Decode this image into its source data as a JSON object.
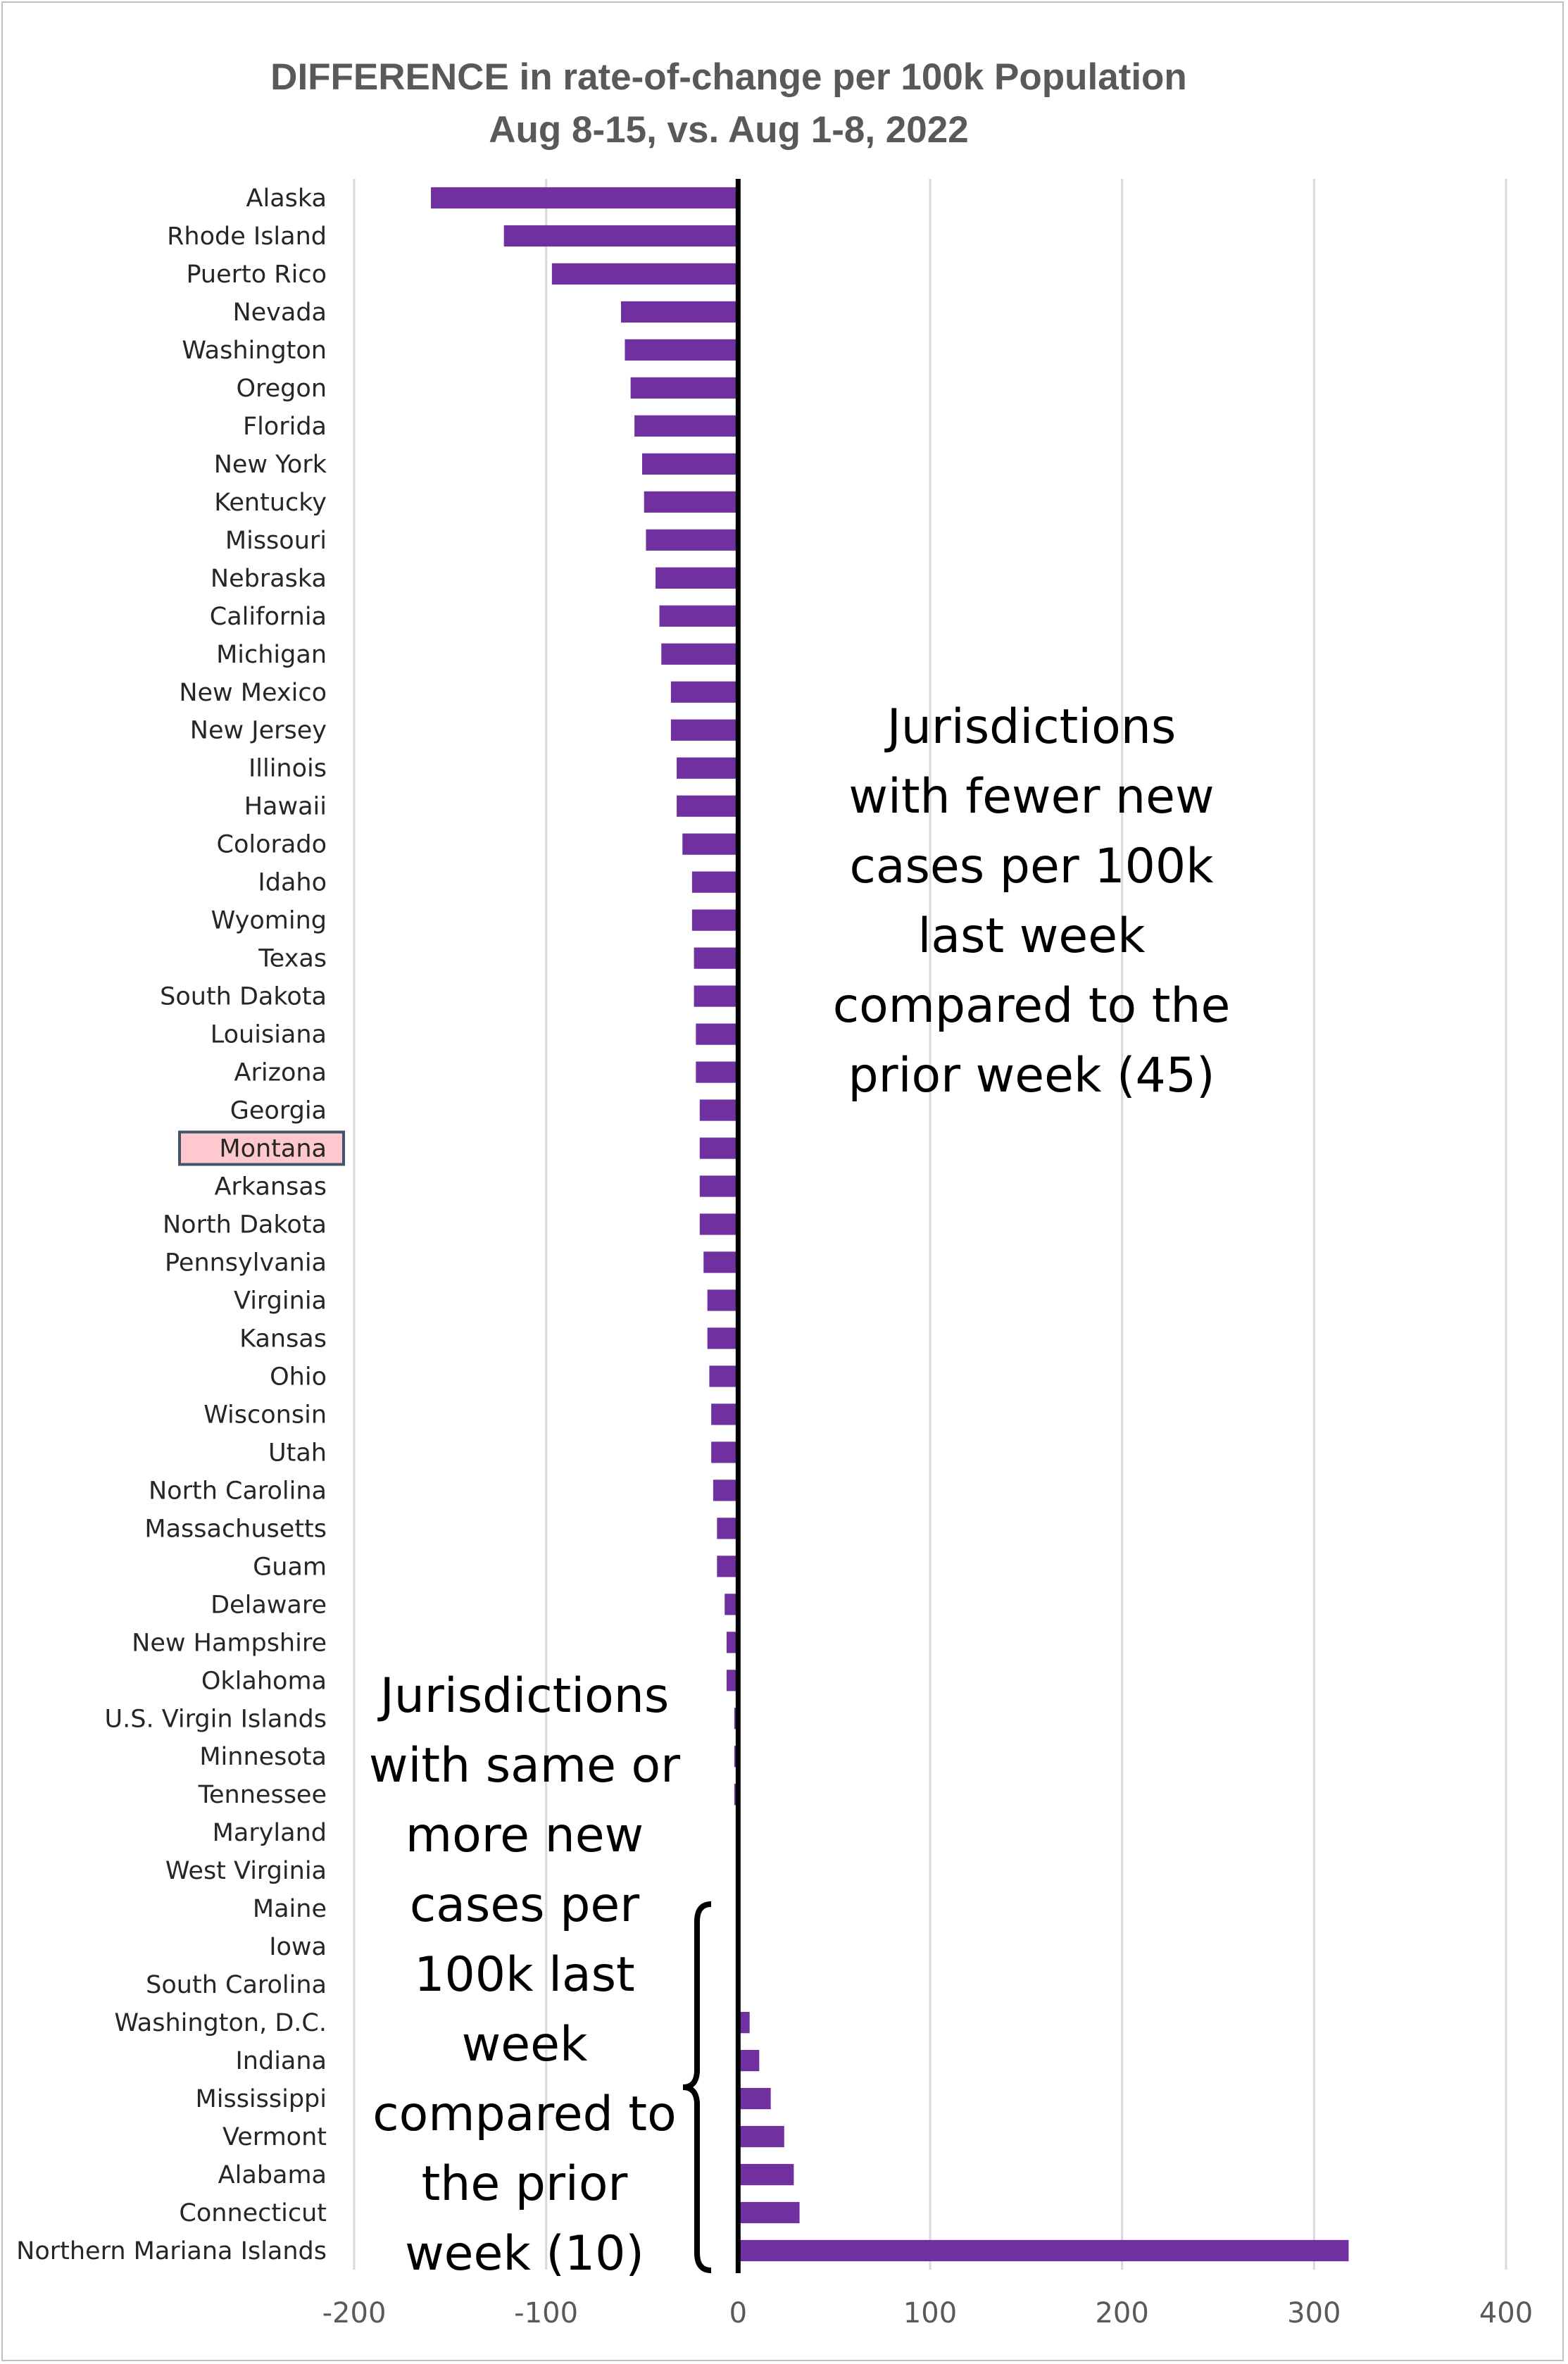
{
  "chart_data": {
    "type": "bar",
    "orientation": "horizontal",
    "title": "DIFFERENCE in rate-of-change per 100k Population",
    "subtitle": "Aug 8-15, vs. Aug 1-8, 2022",
    "xlabel": "",
    "ylabel": "",
    "xlim": [
      -200,
      400
    ],
    "xticks": [
      -200,
      -100,
      0,
      100,
      200,
      300,
      400
    ],
    "grid": "vertical",
    "legend": "none",
    "bar_color": "#7030a0",
    "highlight_color": "#ffc7ce",
    "highlight_border": "#44546a",
    "highlighted_category": "Montana",
    "categories": [
      "Alaska",
      "Rhode Island",
      "Puerto Rico",
      "Nevada",
      "Washington",
      "Oregon",
      "Florida",
      "New York",
      "Kentucky",
      "Missouri",
      "Nebraska",
      "California",
      "Michigan",
      "New Mexico",
      "New Jersey",
      "Illinois",
      "Hawaii",
      "Colorado",
      "Idaho",
      "Wyoming",
      "Texas",
      "South Dakota",
      "Louisiana",
      "Arizona",
      "Georgia",
      "Montana",
      "Arkansas",
      "North Dakota",
      "Pennsylvania",
      "Virginia",
      "Kansas",
      "Ohio",
      "Wisconsin",
      "Utah",
      "North Carolina",
      "Massachusetts",
      "Guam",
      "Delaware",
      "New Hampshire",
      "Oklahoma",
      "U.S. Virgin Islands",
      "Minnesota",
      "Tennessee",
      "Maryland",
      "West Virginia",
      "Maine",
      "Iowa",
      "South Carolina",
      "Washington, D.C.",
      "Indiana",
      "Mississippi",
      "Vermont",
      "Alabama",
      "Connecticut",
      "Northern Mariana Islands"
    ],
    "values": [
      -160,
      -122,
      -97,
      -61,
      -59,
      -56,
      -54,
      -50,
      -49,
      -48,
      -43,
      -41,
      -40,
      -35,
      -35,
      -32,
      -32,
      -29,
      -24,
      -24,
      -23,
      -23,
      -22,
      -22,
      -20,
      -20,
      -20,
      -20,
      -18,
      -16,
      -16,
      -15,
      -14,
      -14,
      -13,
      -11,
      -11,
      -7,
      -6,
      -6,
      -2,
      -2,
      -2,
      -1,
      -1,
      0,
      0,
      0,
      6,
      11,
      17,
      24,
      29,
      32,
      318
    ],
    "annotations": [
      {
        "lines": [
          "Jurisdictions",
          "with fewer new",
          "cases per 100k",
          "last week",
          "compared to the",
          "prior week (45)"
        ]
      },
      {
        "lines": [
          "Jurisdictions",
          "with same or",
          "more new",
          "cases per",
          "100k last",
          "week",
          "compared to",
          "the prior",
          "week (10)"
        ]
      }
    ]
  }
}
